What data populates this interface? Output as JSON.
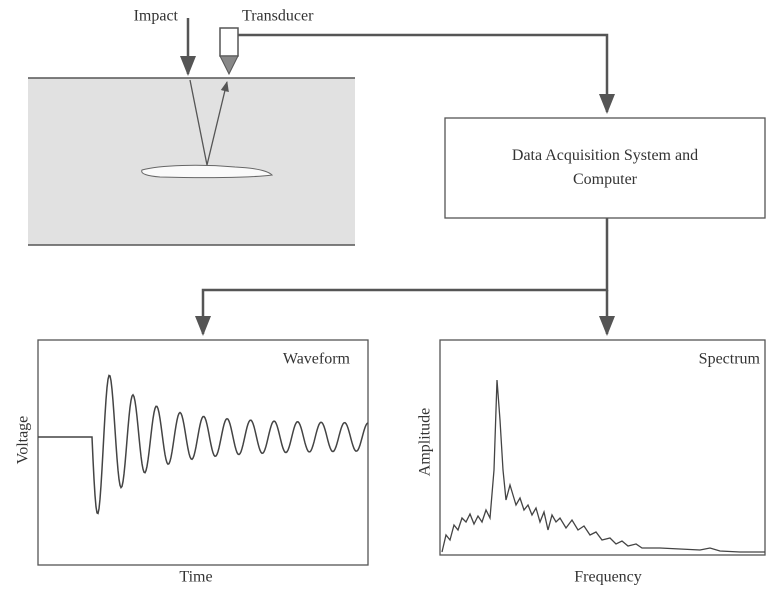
{
  "labels": {
    "impact": "Impact",
    "transducer": "Transducer",
    "system": "Data Acquisition System and Computer"
  },
  "waveform": {
    "title": "Waveform",
    "y_label": "Voltage",
    "x_label": "Time"
  },
  "spectrum": {
    "title": "Spectrum",
    "y_label": "Amplitude",
    "x_label": "Frequency"
  }
}
